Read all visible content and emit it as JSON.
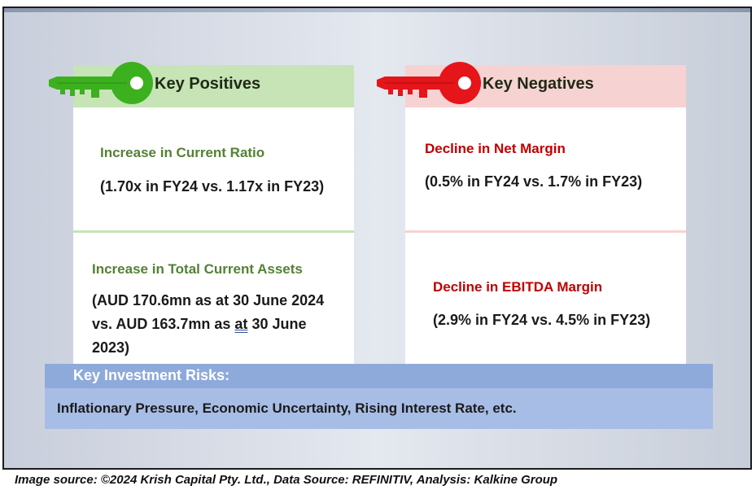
{
  "positives": {
    "title": "Key Positives",
    "item1_heading": "Increase in Current Ratio",
    "item1_detail": "(1.70x in FY24 vs. 1.17x in FY23)",
    "item2_heading": "Increase in Total Current Assets",
    "item2_detail_a": "(AUD 170.6mn as at 30 June 2024 vs. AUD 163.7mn as ",
    "item2_detail_b": "at",
    "item2_detail_c": " 30 June 2023)"
  },
  "negatives": {
    "title": "Key Negatives",
    "item1_heading": "Decline in Net Margin",
    "item1_detail": "(0.5% in FY24 vs. 1.7% in FY23)",
    "item2_heading": "Decline in EBITDA Margin",
    "item2_detail": "(2.9% in FY24 vs. 4.5% in FY23)"
  },
  "risks": {
    "title": "Key Investment Risks:",
    "text": "Inflationary Pressure, Economic Uncertainty, Rising Interest Rate, etc."
  },
  "footer": {
    "source": "Image source: ©2024 Krish Capital Pty. Ltd., Data Source: REFINITIV, Analysis: Kalkine Group"
  },
  "icons": {
    "positive_key": "green-key-icon",
    "negative_key": "red-key-icon"
  },
  "colors": {
    "positive_accent": "#538135",
    "negative_accent": "#c00000",
    "positive_header_bg": "#c6e4b6",
    "negative_header_bg": "#f7d2d2",
    "risk_header_bg": "#8eaadb",
    "risk_body_bg": "#a7bde6",
    "green_key": "#3cb01e",
    "red_key": "#e5151a"
  }
}
